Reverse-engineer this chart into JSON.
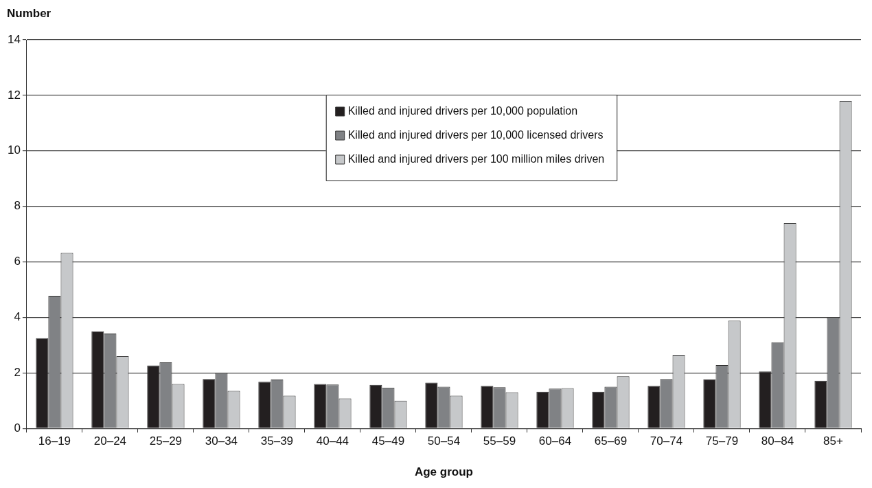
{
  "chart_data": {
    "type": "bar",
    "xlabel": "Age group",
    "ylabel": "Number",
    "categories": [
      "16–19",
      "20–24",
      "25–29",
      "30–34",
      "35–39",
      "40–44",
      "45–49",
      "50–54",
      "55–59",
      "60–64",
      "65–69",
      "70–74",
      "75–79",
      "80–84",
      "85+"
    ],
    "series": [
      {
        "name": "Killed and injured drivers per 10,000 population",
        "color": "#231f20",
        "values": [
          3.25,
          3.5,
          2.27,
          1.78,
          1.68,
          1.6,
          1.57,
          1.65,
          1.53,
          1.32,
          1.32,
          1.53,
          1.77,
          2.05,
          1.72
        ]
      },
      {
        "name": "Killed and injured drivers per 10,000 licensed drivers",
        "color": "#808285",
        "values": [
          4.78,
          3.42,
          2.38,
          2.0,
          1.76,
          1.58,
          1.47,
          1.5,
          1.48,
          1.43,
          1.5,
          1.78,
          2.28,
          3.1,
          4.0
        ]
      },
      {
        "name": "Killed and injured drivers per 100 million miles driven",
        "color": "#c6c8ca",
        "values": [
          6.32,
          2.6,
          1.6,
          1.35,
          1.18,
          1.08,
          1.0,
          1.18,
          1.3,
          1.45,
          1.88,
          2.65,
          3.88,
          7.4,
          11.8
        ]
      }
    ],
    "ylim": [
      0,
      14
    ],
    "yticks": [
      0,
      2,
      4,
      6,
      8,
      10,
      12,
      14
    ],
    "grid": "y",
    "legend": "top"
  }
}
